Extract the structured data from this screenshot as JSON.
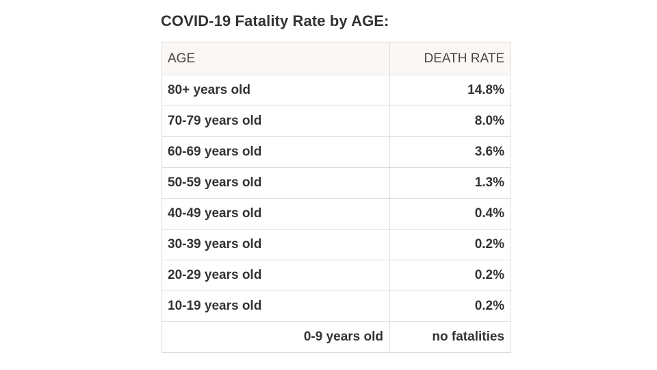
{
  "title": "COVID-19 Fatality Rate by AGE:",
  "table": {
    "headers": [
      "AGE",
      "DEATH RATE"
    ],
    "rows": [
      {
        "age": "80+ years old",
        "rate": "14.8%"
      },
      {
        "age": "70-79 years old",
        "rate": "8.0%"
      },
      {
        "age": "60-69 years old",
        "rate": "3.6%"
      },
      {
        "age": "50-59 years old",
        "rate": "1.3%"
      },
      {
        "age": "40-49 years old",
        "rate": "0.4%"
      },
      {
        "age": "30-39 years old",
        "rate": "0.2%"
      },
      {
        "age": "20-29 years old",
        "rate": "0.2%"
      },
      {
        "age": "10-19 years old",
        "rate": "0.2%"
      },
      {
        "age": "0-9 years old",
        "rate": "no fatalities"
      }
    ]
  },
  "colors": {
    "header_bg": "#fbf7f5",
    "border": "#dddddd",
    "text": "#333333"
  }
}
